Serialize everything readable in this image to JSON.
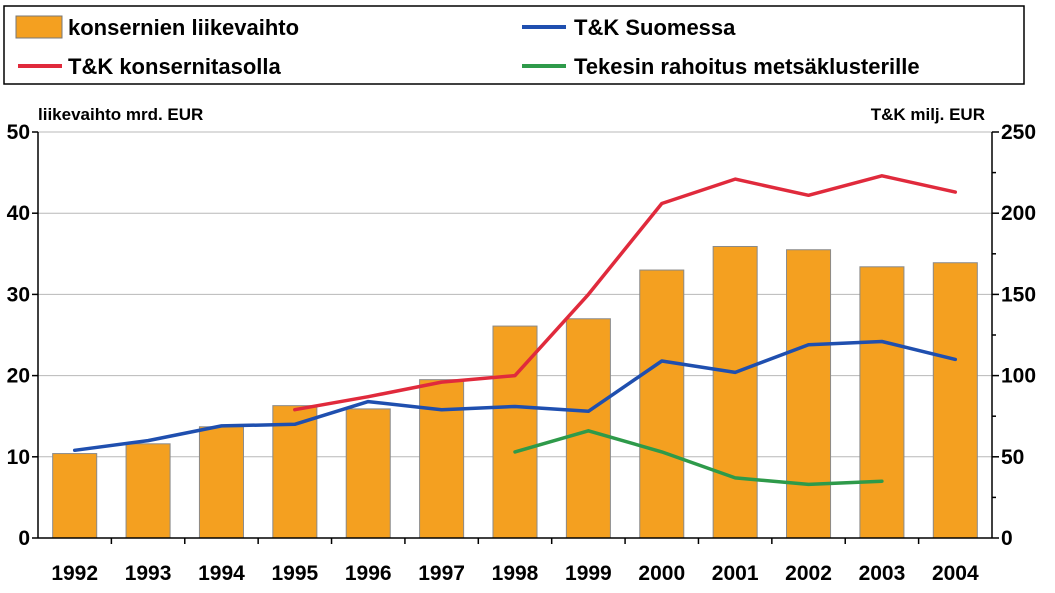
{
  "chart_data": {
    "type": "bar+line",
    "categories": [
      "1992",
      "1993",
      "1994",
      "1995",
      "1996",
      "1997",
      "1998",
      "1999",
      "2000",
      "2001",
      "2002",
      "2003",
      "2004"
    ],
    "bars": {
      "name": "konsernien liikevaihto",
      "axis": "left",
      "color": "#F4A020",
      "values": [
        10.4,
        11.6,
        13.7,
        16.3,
        15.9,
        19.5,
        26.1,
        27.0,
        33.0,
        35.9,
        35.5,
        33.4,
        33.9
      ]
    },
    "series": [
      {
        "name": "T&K Suomessa",
        "axis": "right",
        "color": "#1F4FAF",
        "values": [
          54,
          60,
          69,
          70,
          84,
          79,
          81,
          78,
          109,
          102,
          119,
          121,
          110
        ]
      },
      {
        "name": "T&K konsernitasolla",
        "axis": "right",
        "color": "#E02A3C",
        "values": [
          null,
          null,
          null,
          79,
          87,
          96,
          100,
          150,
          206,
          221,
          211,
          223,
          213
        ]
      },
      {
        "name": "Tekesin rahoitus metsäklusterille",
        "axis": "right",
        "color": "#2E9A4A",
        "values": [
          null,
          null,
          null,
          null,
          null,
          null,
          53,
          66,
          53,
          37,
          33,
          35,
          null
        ]
      }
    ],
    "y_left": {
      "label": "liikevaihto mrd. EUR",
      "min": 0,
      "max": 50,
      "ticks": [
        0,
        10,
        20,
        30,
        40,
        50
      ]
    },
    "y_right": {
      "label": "T&K milj. EUR",
      "min": 0,
      "max": 250,
      "ticks": [
        0,
        50,
        100,
        150,
        200,
        250
      ]
    },
    "grid": true,
    "legend_position": "top",
    "legend_order": [
      "konsernien liikevaihto",
      "T&K Suomessa",
      "T&K konsernitasolla",
      "Tekesin rahoitus metsäklusterille"
    ]
  }
}
